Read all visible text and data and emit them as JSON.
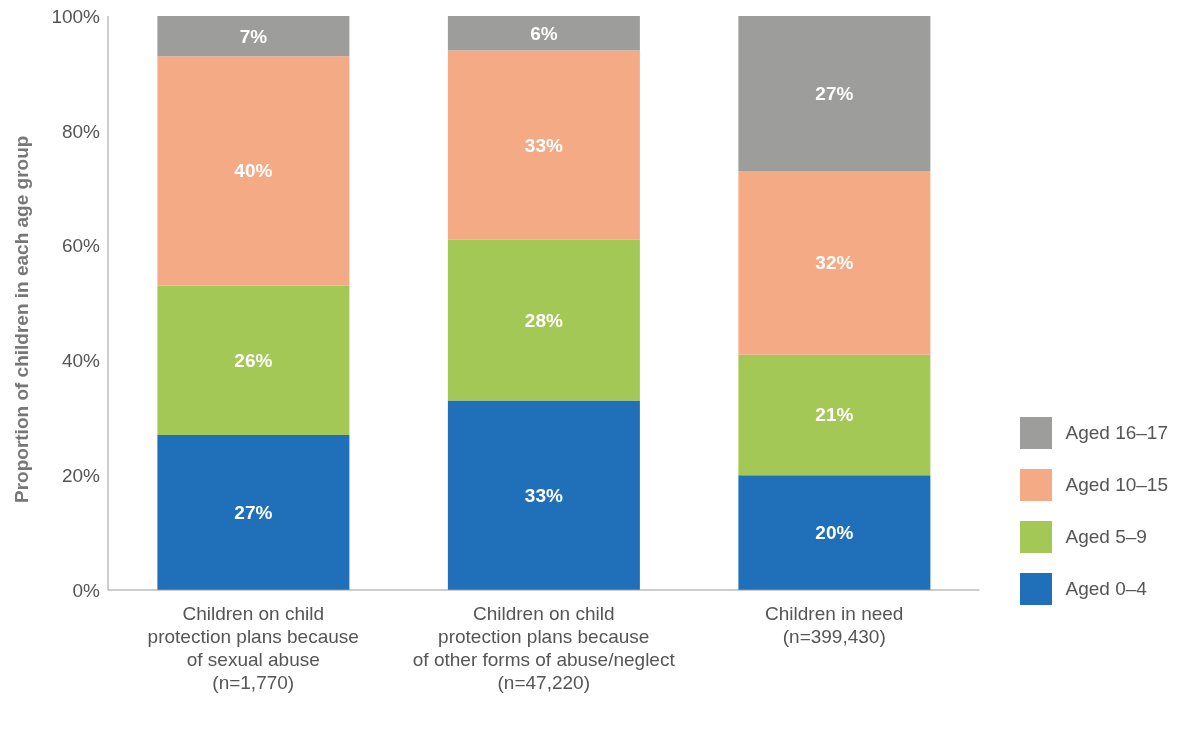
{
  "chart_data": {
    "type": "bar",
    "stacked": true,
    "ylabel": "Proportion of children in each age group",
    "categories": [
      "Children on child\nprotection plans because\nof sexual abuse\n(n=1,770)",
      "Children on child\nprotection plans because\nof other forms of abuse/neglect\n(n=47,220)",
      "Children in need\n(n=399,430)"
    ],
    "series": [
      {
        "name": "Aged 0–4",
        "color": "#1f70b8",
        "values": [
          27,
          33,
          20
        ],
        "value_labels": [
          "27%",
          "33%",
          "20%"
        ]
      },
      {
        "name": "Aged 5–9",
        "color": "#a4c855",
        "values": [
          26,
          28,
          21
        ],
        "value_labels": [
          "26%",
          "28%",
          "21%"
        ]
      },
      {
        "name": "Aged 10–15",
        "color": "#f5aa86",
        "values": [
          40,
          33,
          32
        ],
        "value_labels": [
          "40%",
          "33%",
          "32%"
        ]
      },
      {
        "name": "Aged 16–17",
        "color": "#9d9d9c",
        "values": [
          7,
          6,
          27
        ],
        "value_labels": [
          "7%",
          "6%",
          "27%"
        ]
      }
    ],
    "ylim": [
      0,
      100
    ],
    "yticks": [
      {
        "value": 0,
        "label": "0%"
      },
      {
        "value": 20,
        "label": "20%"
      },
      {
        "value": 40,
        "label": "40%"
      },
      {
        "value": 60,
        "label": "60%"
      },
      {
        "value": 80,
        "label": "80%"
      },
      {
        "value": 100,
        "label": "100%"
      }
    ],
    "grid": false,
    "legend": "bottom right"
  }
}
